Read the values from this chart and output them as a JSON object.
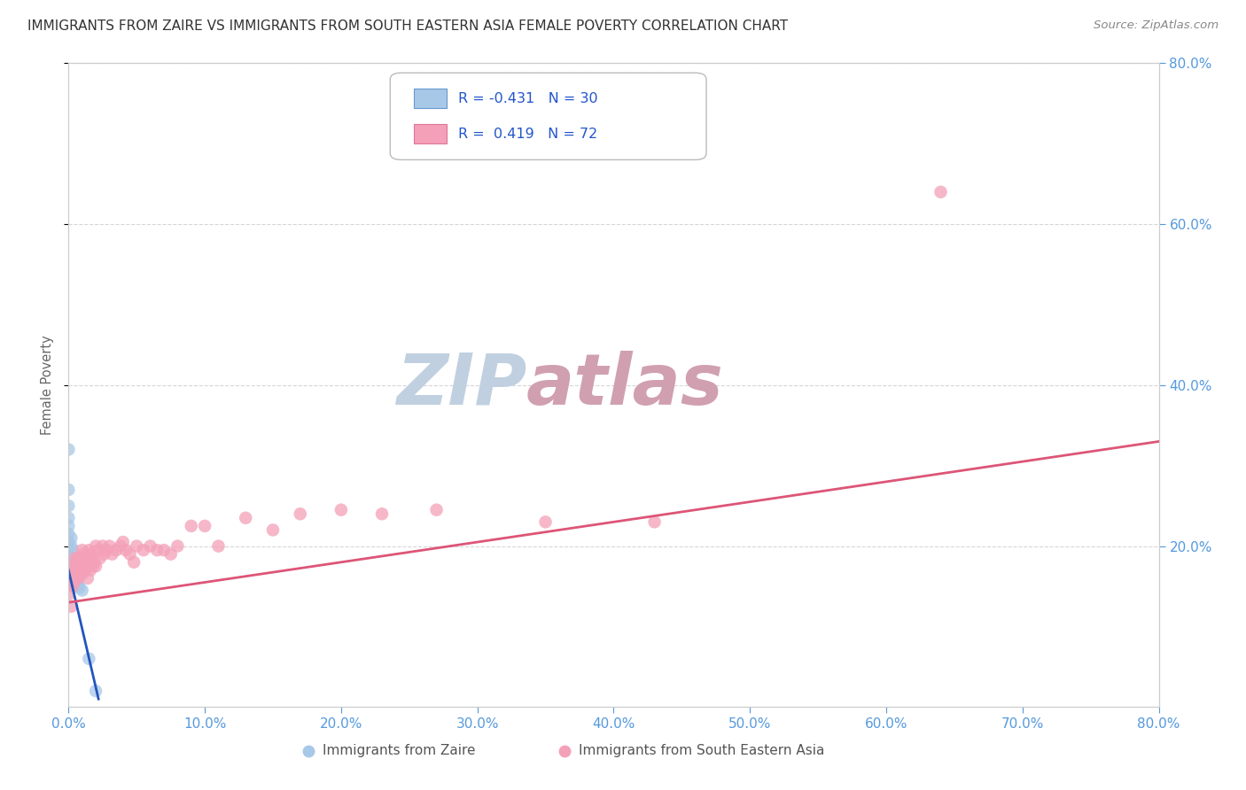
{
  "title": "IMMIGRANTS FROM ZAIRE VS IMMIGRANTS FROM SOUTH EASTERN ASIA FEMALE POVERTY CORRELATION CHART",
  "source": "Source: ZipAtlas.com",
  "ylabel_label": "Female Poverty",
  "legend_label1": "Immigrants from Zaire",
  "legend_label2": "Immigrants from South Eastern Asia",
  "R1": -0.431,
  "N1": 30,
  "R2": 0.419,
  "N2": 72,
  "xmin": 0.0,
  "xmax": 0.8,
  "ymin": 0.0,
  "ymax": 0.8,
  "color_blue": "#a8c8e8",
  "color_pink": "#f4a0b8",
  "color_blue_line": "#2255bb",
  "color_pink_line": "#dd5577",
  "color_axis_labels": "#5599dd",
  "watermark_zip_color": "#c0d0e0",
  "watermark_atlas_color": "#d0a0b0",
  "background": "#ffffff",
  "grid_color": "#cccccc",
  "title_color": "#333333",
  "zaire_x": [
    0.0,
    0.0,
    0.0,
    0.0,
    0.0,
    0.0,
    0.0,
    0.0,
    0.0,
    0.0,
    0.002,
    0.002,
    0.002,
    0.003,
    0.003,
    0.003,
    0.003,
    0.004,
    0.004,
    0.005,
    0.005,
    0.005,
    0.006,
    0.006,
    0.007,
    0.007,
    0.008,
    0.01,
    0.015,
    0.02
  ],
  "zaire_y": [
    0.32,
    0.27,
    0.25,
    0.235,
    0.225,
    0.215,
    0.205,
    0.195,
    0.185,
    0.175,
    0.21,
    0.2,
    0.18,
    0.195,
    0.185,
    0.175,
    0.165,
    0.18,
    0.17,
    0.175,
    0.165,
    0.155,
    0.168,
    0.158,
    0.162,
    0.152,
    0.148,
    0.145,
    0.06,
    0.02
  ],
  "sea_x": [
    0.0,
    0.001,
    0.002,
    0.002,
    0.003,
    0.003,
    0.004,
    0.004,
    0.005,
    0.005,
    0.005,
    0.006,
    0.006,
    0.007,
    0.007,
    0.007,
    0.008,
    0.008,
    0.009,
    0.009,
    0.01,
    0.01,
    0.01,
    0.011,
    0.011,
    0.012,
    0.012,
    0.013,
    0.013,
    0.014,
    0.014,
    0.015,
    0.015,
    0.016,
    0.016,
    0.017,
    0.018,
    0.019,
    0.02,
    0.02,
    0.022,
    0.023,
    0.025,
    0.026,
    0.028,
    0.03,
    0.032,
    0.035,
    0.038,
    0.04,
    0.042,
    0.045,
    0.048,
    0.05,
    0.055,
    0.06,
    0.065,
    0.07,
    0.075,
    0.08,
    0.09,
    0.1,
    0.11,
    0.13,
    0.15,
    0.17,
    0.2,
    0.23,
    0.27,
    0.35,
    0.43,
    0.64
  ],
  "sea_y": [
    0.14,
    0.155,
    0.165,
    0.125,
    0.175,
    0.15,
    0.17,
    0.155,
    0.185,
    0.17,
    0.16,
    0.18,
    0.165,
    0.185,
    0.175,
    0.16,
    0.18,
    0.165,
    0.185,
    0.17,
    0.195,
    0.18,
    0.165,
    0.19,
    0.175,
    0.185,
    0.17,
    0.19,
    0.175,
    0.185,
    0.16,
    0.195,
    0.18,
    0.19,
    0.17,
    0.185,
    0.175,
    0.18,
    0.2,
    0.175,
    0.195,
    0.185,
    0.2,
    0.19,
    0.195,
    0.2,
    0.19,
    0.195,
    0.2,
    0.205,
    0.195,
    0.19,
    0.18,
    0.2,
    0.195,
    0.2,
    0.195,
    0.195,
    0.19,
    0.2,
    0.225,
    0.225,
    0.2,
    0.235,
    0.22,
    0.24,
    0.245,
    0.24,
    0.245,
    0.23,
    0.23,
    0.64
  ],
  "blue_line_x0": 0.0,
  "blue_line_x1": 0.022,
  "blue_line_y0": 0.17,
  "blue_line_y1": 0.01,
  "pink_line_x0": 0.0,
  "pink_line_x1": 0.8,
  "pink_line_y0": 0.13,
  "pink_line_y1": 0.33
}
